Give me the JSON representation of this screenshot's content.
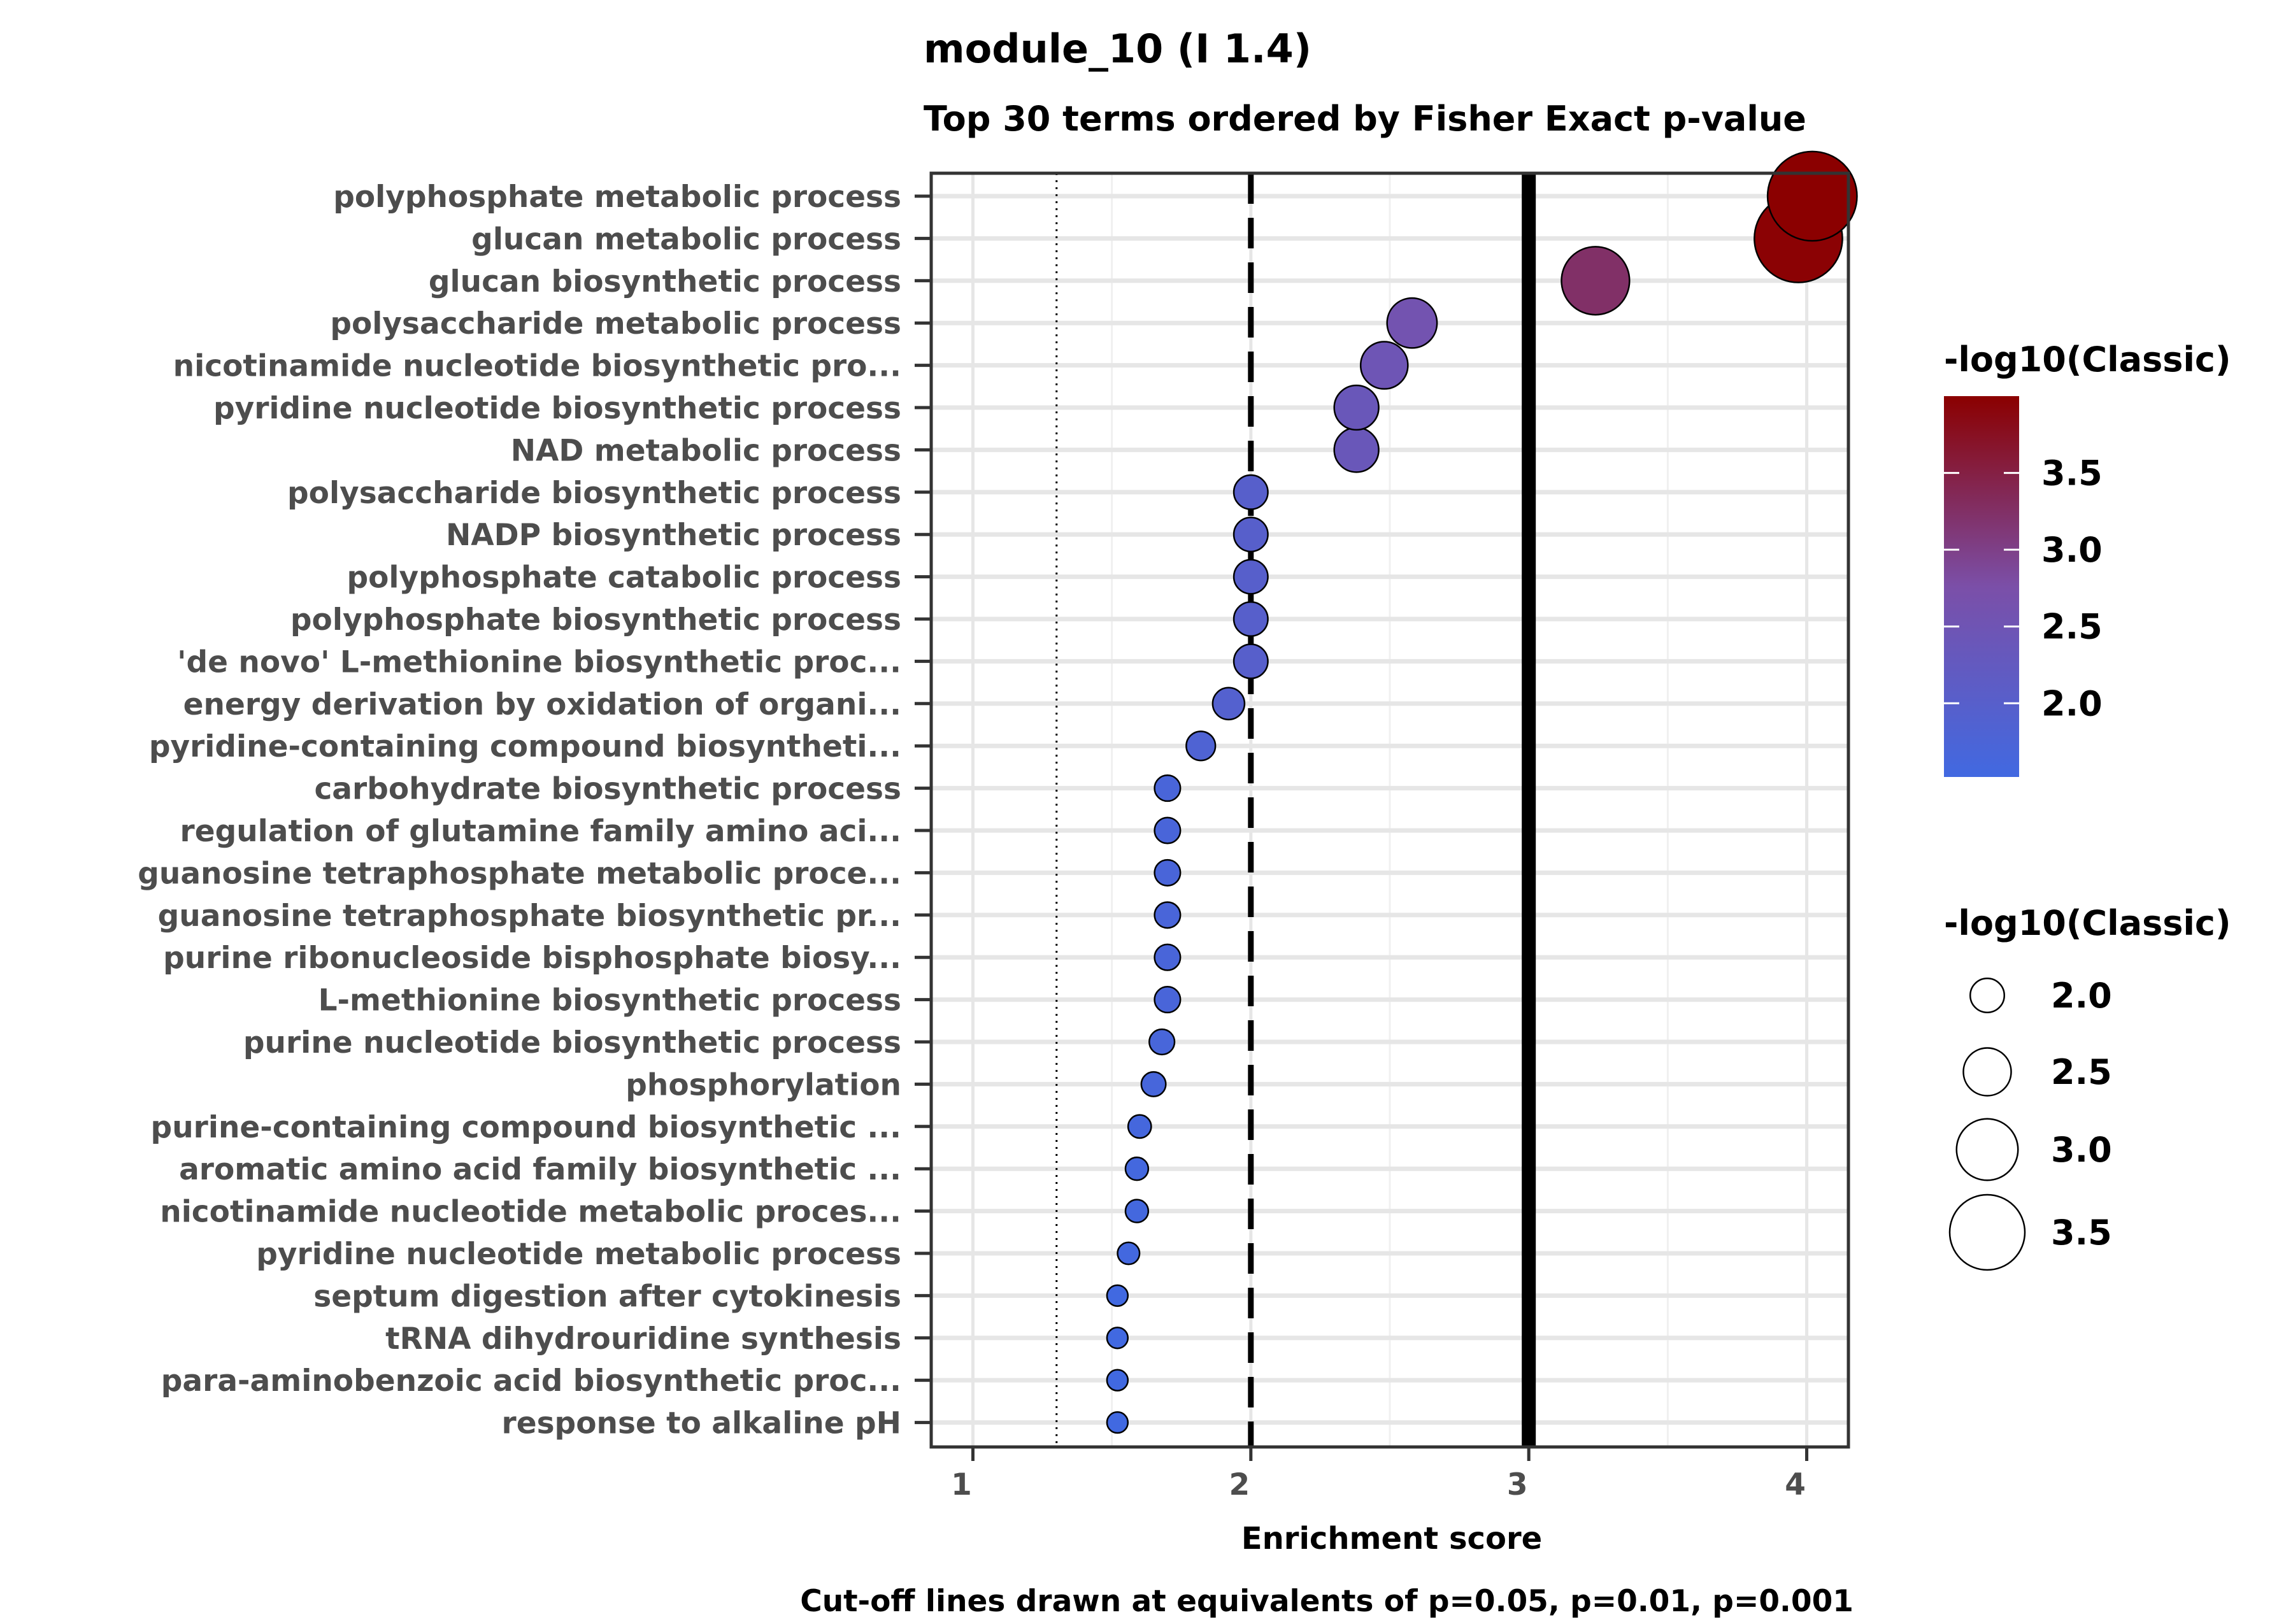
{
  "chart_data": {
    "type": "scatter",
    "title": "module_10 (I 1.4)",
    "subtitle": "Top 30 terms ordered by Fisher Exact p-value",
    "xlabel": "Enrichment score",
    "ylabel": "",
    "caption": "Cut-off lines drawn at equivalents of p=0.05, p=0.01, p=0.001",
    "xlim": [
      0.85,
      4.15
    ],
    "x_ticks": [
      1,
      2,
      3,
      4
    ],
    "grid": true,
    "cutoff_lines": [
      {
        "x": 1.301,
        "style": "dotted"
      },
      {
        "x": 2,
        "style": "dashed"
      },
      {
        "x": 3,
        "style": "solid"
      }
    ],
    "color_scale": {
      "low": "#4169e1",
      "mid": "#7b4fa8",
      "high": "#8b0000",
      "min": 1.52,
      "max": 4.0
    },
    "terms": [
      {
        "label": "polyphosphate metabolic process",
        "x": 4.02,
        "value": 4.02
      },
      {
        "label": "glucan metabolic process",
        "x": 3.97,
        "value": 3.97
      },
      {
        "label": "glucan biosynthetic process",
        "x": 3.24,
        "value": 3.24
      },
      {
        "label": "polysaccharide metabolic process",
        "x": 2.58,
        "value": 2.58
      },
      {
        "label": "nicotinamide nucleotide biosynthetic pro...",
        "x": 2.48,
        "value": 2.48
      },
      {
        "label": "pyridine nucleotide biosynthetic process",
        "x": 2.38,
        "value": 2.38
      },
      {
        "label": "NAD metabolic process",
        "x": 2.38,
        "value": 2.38
      },
      {
        "label": "polysaccharide biosynthetic process",
        "x": 2.0,
        "value": 2.0
      },
      {
        "label": "NADP biosynthetic process",
        "x": 2.0,
        "value": 2.0
      },
      {
        "label": "polyphosphate catabolic process",
        "x": 2.0,
        "value": 2.0
      },
      {
        "label": "polyphosphate biosynthetic process",
        "x": 2.0,
        "value": 2.0
      },
      {
        "label": "'de novo' L-methionine biosynthetic proc...",
        "x": 2.0,
        "value": 2.0
      },
      {
        "label": "energy derivation by oxidation of organi...",
        "x": 1.92,
        "value": 1.92
      },
      {
        "label": "pyridine-containing compound biosyntheti...",
        "x": 1.82,
        "value": 1.82
      },
      {
        "label": "carbohydrate biosynthetic process",
        "x": 1.7,
        "value": 1.7
      },
      {
        "label": "regulation of glutamine family amino aci...",
        "x": 1.7,
        "value": 1.7
      },
      {
        "label": "guanosine tetraphosphate metabolic proce...",
        "x": 1.7,
        "value": 1.7
      },
      {
        "label": "guanosine tetraphosphate biosynthetic pr...",
        "x": 1.7,
        "value": 1.7
      },
      {
        "label": "purine ribonucleoside bisphosphate biosy...",
        "x": 1.7,
        "value": 1.7
      },
      {
        "label": "L-methionine biosynthetic process",
        "x": 1.7,
        "value": 1.7
      },
      {
        "label": "purine nucleotide biosynthetic process",
        "x": 1.68,
        "value": 1.68
      },
      {
        "label": "phosphorylation",
        "x": 1.65,
        "value": 1.65
      },
      {
        "label": "purine-containing compound biosynthetic ...",
        "x": 1.6,
        "value": 1.6
      },
      {
        "label": "aromatic amino acid family biosynthetic ...",
        "x": 1.59,
        "value": 1.59
      },
      {
        "label": "nicotinamide nucleotide metabolic proces...",
        "x": 1.59,
        "value": 1.59
      },
      {
        "label": "pyridine nucleotide metabolic process",
        "x": 1.56,
        "value": 1.56
      },
      {
        "label": "septum digestion after cytokinesis",
        "x": 1.52,
        "value": 1.52
      },
      {
        "label": "tRNA dihydrouridine synthesis",
        "x": 1.52,
        "value": 1.52
      },
      {
        "label": "para-aminobenzoic acid biosynthetic proc...",
        "x": 1.52,
        "value": 1.52
      },
      {
        "label": "response to alkaline pH",
        "x": 1.52,
        "value": 1.52
      }
    ],
    "legend_color": {
      "title": "-log10(Classic)",
      "breaks": [
        2.0,
        2.5,
        3.0,
        3.5
      ],
      "labels": [
        "2.0",
        "2.5",
        "3.0",
        "3.5"
      ]
    },
    "legend_size": {
      "title": "-log10(Classic)",
      "breaks": [
        2.0,
        2.5,
        3.0,
        3.5
      ],
      "labels": [
        "2.0",
        "2.5",
        "3.0",
        "3.5"
      ]
    }
  }
}
